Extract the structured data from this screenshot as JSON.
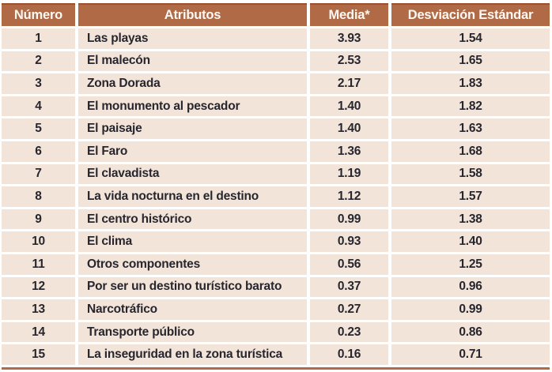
{
  "colors": {
    "header_bg": "#b16a46",
    "header_top_border": "#9e4f2e",
    "header_text": "#fdf9f5",
    "row_bg": "#f2e4d9",
    "body_text": "#27262e",
    "gap": "#ffffff"
  },
  "table": {
    "columns": [
      {
        "label": "Número"
      },
      {
        "label": "Atributos"
      },
      {
        "label": "Media*"
      },
      {
        "label": "Desviación Estándar"
      }
    ],
    "rows": [
      {
        "numero": "1",
        "atributo": "Las playas",
        "media": "3.93",
        "desviacion": "1.54"
      },
      {
        "numero": "2",
        "atributo": "El malecón",
        "media": "2.53",
        "desviacion": "1.65"
      },
      {
        "numero": "3",
        "atributo": "Zona Dorada",
        "media": "2.17",
        "desviacion": "1.83"
      },
      {
        "numero": "4",
        "atributo": "El monumento al pescador",
        "media": "1.40",
        "desviacion": "1.82"
      },
      {
        "numero": "5",
        "atributo": "El paisaje",
        "media": "1.40",
        "desviacion": "1.63"
      },
      {
        "numero": "6",
        "atributo": "El Faro",
        "media": "1.36",
        "desviacion": "1.68"
      },
      {
        "numero": "7",
        "atributo": "El clavadista",
        "media": "1.19",
        "desviacion": "1.58"
      },
      {
        "numero": "8",
        "atributo": "La vida nocturna en el destino",
        "media": "1.12",
        "desviacion": "1.57"
      },
      {
        "numero": "9",
        "atributo": "El centro histórico",
        "media": "0.99",
        "desviacion": "1.38"
      },
      {
        "numero": "10",
        "atributo": "El clima",
        "media": "0.93",
        "desviacion": "1.40"
      },
      {
        "numero": "11",
        "atributo": "Otros componentes",
        "media": "0.56",
        "desviacion": "1.25"
      },
      {
        "numero": "12",
        "atributo": "Por ser un destino turístico barato",
        "media": "0.37",
        "desviacion": "0.96"
      },
      {
        "numero": "13",
        "atributo": "Narcotráfico",
        "media": "0.27",
        "desviacion": "0.99"
      },
      {
        "numero": "14",
        "atributo": "Transporte público",
        "media": "0.23",
        "desviacion": "0.86"
      },
      {
        "numero": "15",
        "atributo": "La inseguridad en la zona turística",
        "media": "0.16",
        "desviacion": "0.71"
      }
    ]
  },
  "chart_data": {
    "type": "table",
    "columns": [
      "Número",
      "Atributos",
      "Media*",
      "Desviación Estándar"
    ],
    "rows": [
      [
        "1",
        "Las playas",
        "3.93",
        "1.54"
      ],
      [
        "2",
        "El malecón",
        "2.53",
        "1.65"
      ],
      [
        "3",
        "Zona Dorada",
        "2.17",
        "1.83"
      ],
      [
        "4",
        "El monumento al pescador",
        "1.40",
        "1.82"
      ],
      [
        "5",
        "El paisaje",
        "1.40",
        "1.63"
      ],
      [
        "6",
        "El Faro",
        "1.36",
        "1.68"
      ],
      [
        "7",
        "El clavadista",
        "1.19",
        "1.58"
      ],
      [
        "8",
        "La vida nocturna en el destino",
        "1.12",
        "1.57"
      ],
      [
        "9",
        "El centro histórico",
        "0.99",
        "1.38"
      ],
      [
        "10",
        "El clima",
        "0.93",
        "1.40"
      ],
      [
        "11",
        "Otros componentes",
        "0.56",
        "1.25"
      ],
      [
        "12",
        "Por ser un destino turístico barato",
        "0.37",
        "0.96"
      ],
      [
        "13",
        "Narcotráfico",
        "0.27",
        "0.99"
      ],
      [
        "14",
        "Transporte público",
        "0.23",
        "0.86"
      ],
      [
        "15",
        "La inseguridad en la zona turística",
        "0.16",
        "0.71"
      ]
    ]
  }
}
